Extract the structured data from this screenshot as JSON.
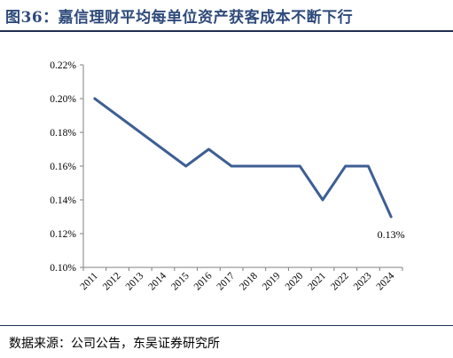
{
  "title": "图36：嘉信理财平均每单位资产获客成本不断下行",
  "source": "数据来源：公司公告，东吴证券研究所",
  "colors": {
    "line": "#3d5f94",
    "title": "#2e4a7a",
    "rule": "#1f2f52"
  },
  "chart_data": {
    "type": "line",
    "title": "",
    "xlabel": "",
    "ylabel": "",
    "categories": [
      "2011",
      "2012",
      "2013",
      "2014",
      "2015",
      "2016",
      "2017",
      "2018",
      "2019",
      "2020",
      "2021",
      "2022",
      "2023",
      "2024"
    ],
    "series": [
      {
        "values": [
          0.2,
          0.19,
          0.18,
          0.17,
          0.16,
          0.17,
          0.16,
          0.16,
          0.16,
          0.16,
          0.14,
          0.16,
          0.16,
          0.13
        ]
      }
    ],
    "ylim": [
      0.1,
      0.22
    ],
    "yticks": [
      "0.10%",
      "0.12%",
      "0.14%",
      "0.16%",
      "0.18%",
      "0.20%",
      "0.22%"
    ],
    "data_labels": [
      {
        "index": 13,
        "text": "0.13%"
      }
    ],
    "grid": false,
    "legend": "none"
  }
}
